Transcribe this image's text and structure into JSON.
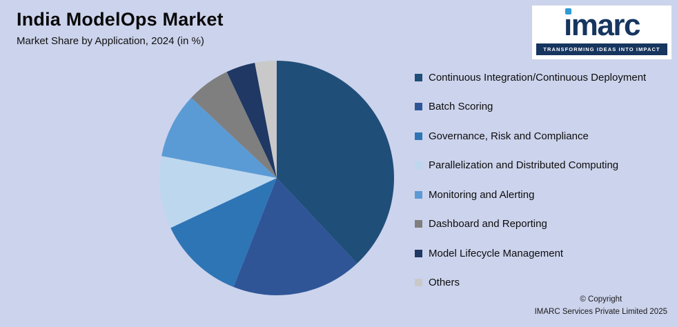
{
  "header": {
    "title": "India ModelOps Market",
    "subtitle": "Market Share by Application, 2024 (in %)"
  },
  "logo": {
    "text": "imarc",
    "tagline": "TRANSFORMING IDEAS INTO IMPACT"
  },
  "footer": {
    "copyright_line1": "© Copyright",
    "copyright_line2": "IMARC Services Private Limited 2025"
  },
  "colors": {
    "background": "#ccd3ec",
    "logo_navy": "#16355f",
    "logo_dot_blue": "#2e9bd6"
  },
  "chart_data": {
    "type": "pie",
    "title": "India ModelOps Market",
    "subtitle": "Market Share by Application, 2024 (in %)",
    "unit": "%",
    "legend_position": "right",
    "start_angle_deg": -90,
    "direction": "clockwise",
    "slices": [
      {
        "label": "Continuous Integration/Continuous Deployment",
        "value": 38,
        "color": "#1f4e79"
      },
      {
        "label": "Batch Scoring",
        "value": 18,
        "color": "#2f5597"
      },
      {
        "label": "Governance, Risk and Compliance",
        "value": 12,
        "color": "#2e75b6"
      },
      {
        "label": "Parallelization and Distributed Computing",
        "value": 10,
        "color": "#bdd7ee"
      },
      {
        "label": "Monitoring and Alerting",
        "value": 9,
        "color": "#5b9bd5"
      },
      {
        "label": "Dashboard and Reporting",
        "value": 6,
        "color": "#7f7f7f"
      },
      {
        "label": "Model Lifecycle Management",
        "value": 4,
        "color": "#1f3864"
      },
      {
        "label": "Others",
        "value": 3,
        "color": "#c9c9c9"
      }
    ]
  }
}
